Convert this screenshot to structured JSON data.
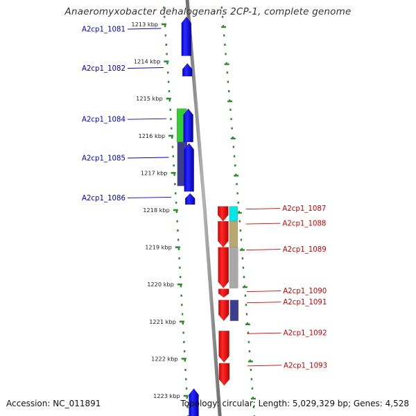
{
  "title": "Anaeromyxobacter dehalogenans 2CP-1, complete genome",
  "footer": {
    "accession": "Accession: NC_011891",
    "summary": "Topology: circular; Length: 5,029,329 bp; Genes: 4,528"
  },
  "colors": {
    "forward_strand": "#0000ff",
    "reverse_strand": "#ff0000",
    "forward_label": "#0000cc",
    "reverse_label": "#cc0000",
    "backbone": "#8c8c8c",
    "tick": "#2e8b2e",
    "green_feature": "#33cc33",
    "navy_feature": "#3d3d8f",
    "cyan_feature": "#00e5e5",
    "khaki_feature": "#b8a870",
    "gray_feature": "#a9a9a9"
  },
  "scale": {
    "unit": "kbp",
    "ticks": [
      {
        "kbp": 1213,
        "label": "1213 kbp"
      },
      {
        "kbp": 1214,
        "label": "1214 kbp"
      },
      {
        "kbp": 1215,
        "label": "1215 kbp"
      },
      {
        "kbp": 1216,
        "label": "1216 kbp"
      },
      {
        "kbp": 1217,
        "label": "1217 kbp"
      },
      {
        "kbp": 1218,
        "label": "1218 kbp"
      },
      {
        "kbp": 1219,
        "label": "1219 kbp"
      },
      {
        "kbp": 1220,
        "label": "1220 kbp"
      },
      {
        "kbp": 1221,
        "label": "1221 kbp"
      },
      {
        "kbp": 1222,
        "label": "1222 kbp"
      },
      {
        "kbp": 1223,
        "label": "1223 kbp"
      }
    ]
  },
  "genes": {
    "forward": [
      {
        "label": "A2cp1_1081",
        "start_kbp": 1212.8,
        "end_kbp": 1213.85
      },
      {
        "label": "A2cp1_1082",
        "start_kbp": 1214.05,
        "end_kbp": 1214.4
      },
      {
        "label": "A2cp1_1084",
        "start_kbp": 1215.27,
        "end_kbp": 1216.17
      },
      {
        "label": "A2cp1_1085",
        "start_kbp": 1216.2,
        "end_kbp": 1217.5
      },
      {
        "label": "A2cp1_1086",
        "start_kbp": 1217.55,
        "end_kbp": 1217.85
      },
      {
        "label": "",
        "start_kbp": 1222.8,
        "end_kbp": 1223.8
      }
    ],
    "reverse": [
      {
        "label": "A2cp1_1087",
        "start_kbp": 1217.9,
        "end_kbp": 1218.3
      },
      {
        "label": "A2cp1_1088",
        "start_kbp": 1218.3,
        "end_kbp": 1219.0
      },
      {
        "label": "A2cp1_1089",
        "start_kbp": 1219.0,
        "end_kbp": 1220.1
      },
      {
        "label": "A2cp1_1090",
        "start_kbp": 1220.12,
        "end_kbp": 1220.35
      },
      {
        "label": "A2cp1_1091",
        "start_kbp": 1220.42,
        "end_kbp": 1220.98
      },
      {
        "label": "A2cp1_1092",
        "start_kbp": 1221.25,
        "end_kbp": 1222.1
      },
      {
        "label": "A2cp1_1093",
        "start_kbp": 1222.12,
        "end_kbp": 1222.72
      }
    ]
  },
  "annotation_blocks": {
    "forward_outer": [
      {
        "start_kbp": 1215.27,
        "end_kbp": 1216.17,
        "color": "#33cc33"
      },
      {
        "start_kbp": 1216.17,
        "end_kbp": 1217.35,
        "color": "#3d3d8f"
      }
    ],
    "reverse_outer": [
      {
        "start_kbp": 1217.9,
        "end_kbp": 1218.3,
        "color": "#00e5e5"
      },
      {
        "start_kbp": 1218.3,
        "end_kbp": 1219.0,
        "color": "#b8a870"
      },
      {
        "start_kbp": 1219.0,
        "end_kbp": 1220.1,
        "color": "#a9a9a9"
      },
      {
        "start_kbp": 1220.42,
        "end_kbp": 1220.98,
        "color": "#3d3d8f"
      }
    ]
  }
}
